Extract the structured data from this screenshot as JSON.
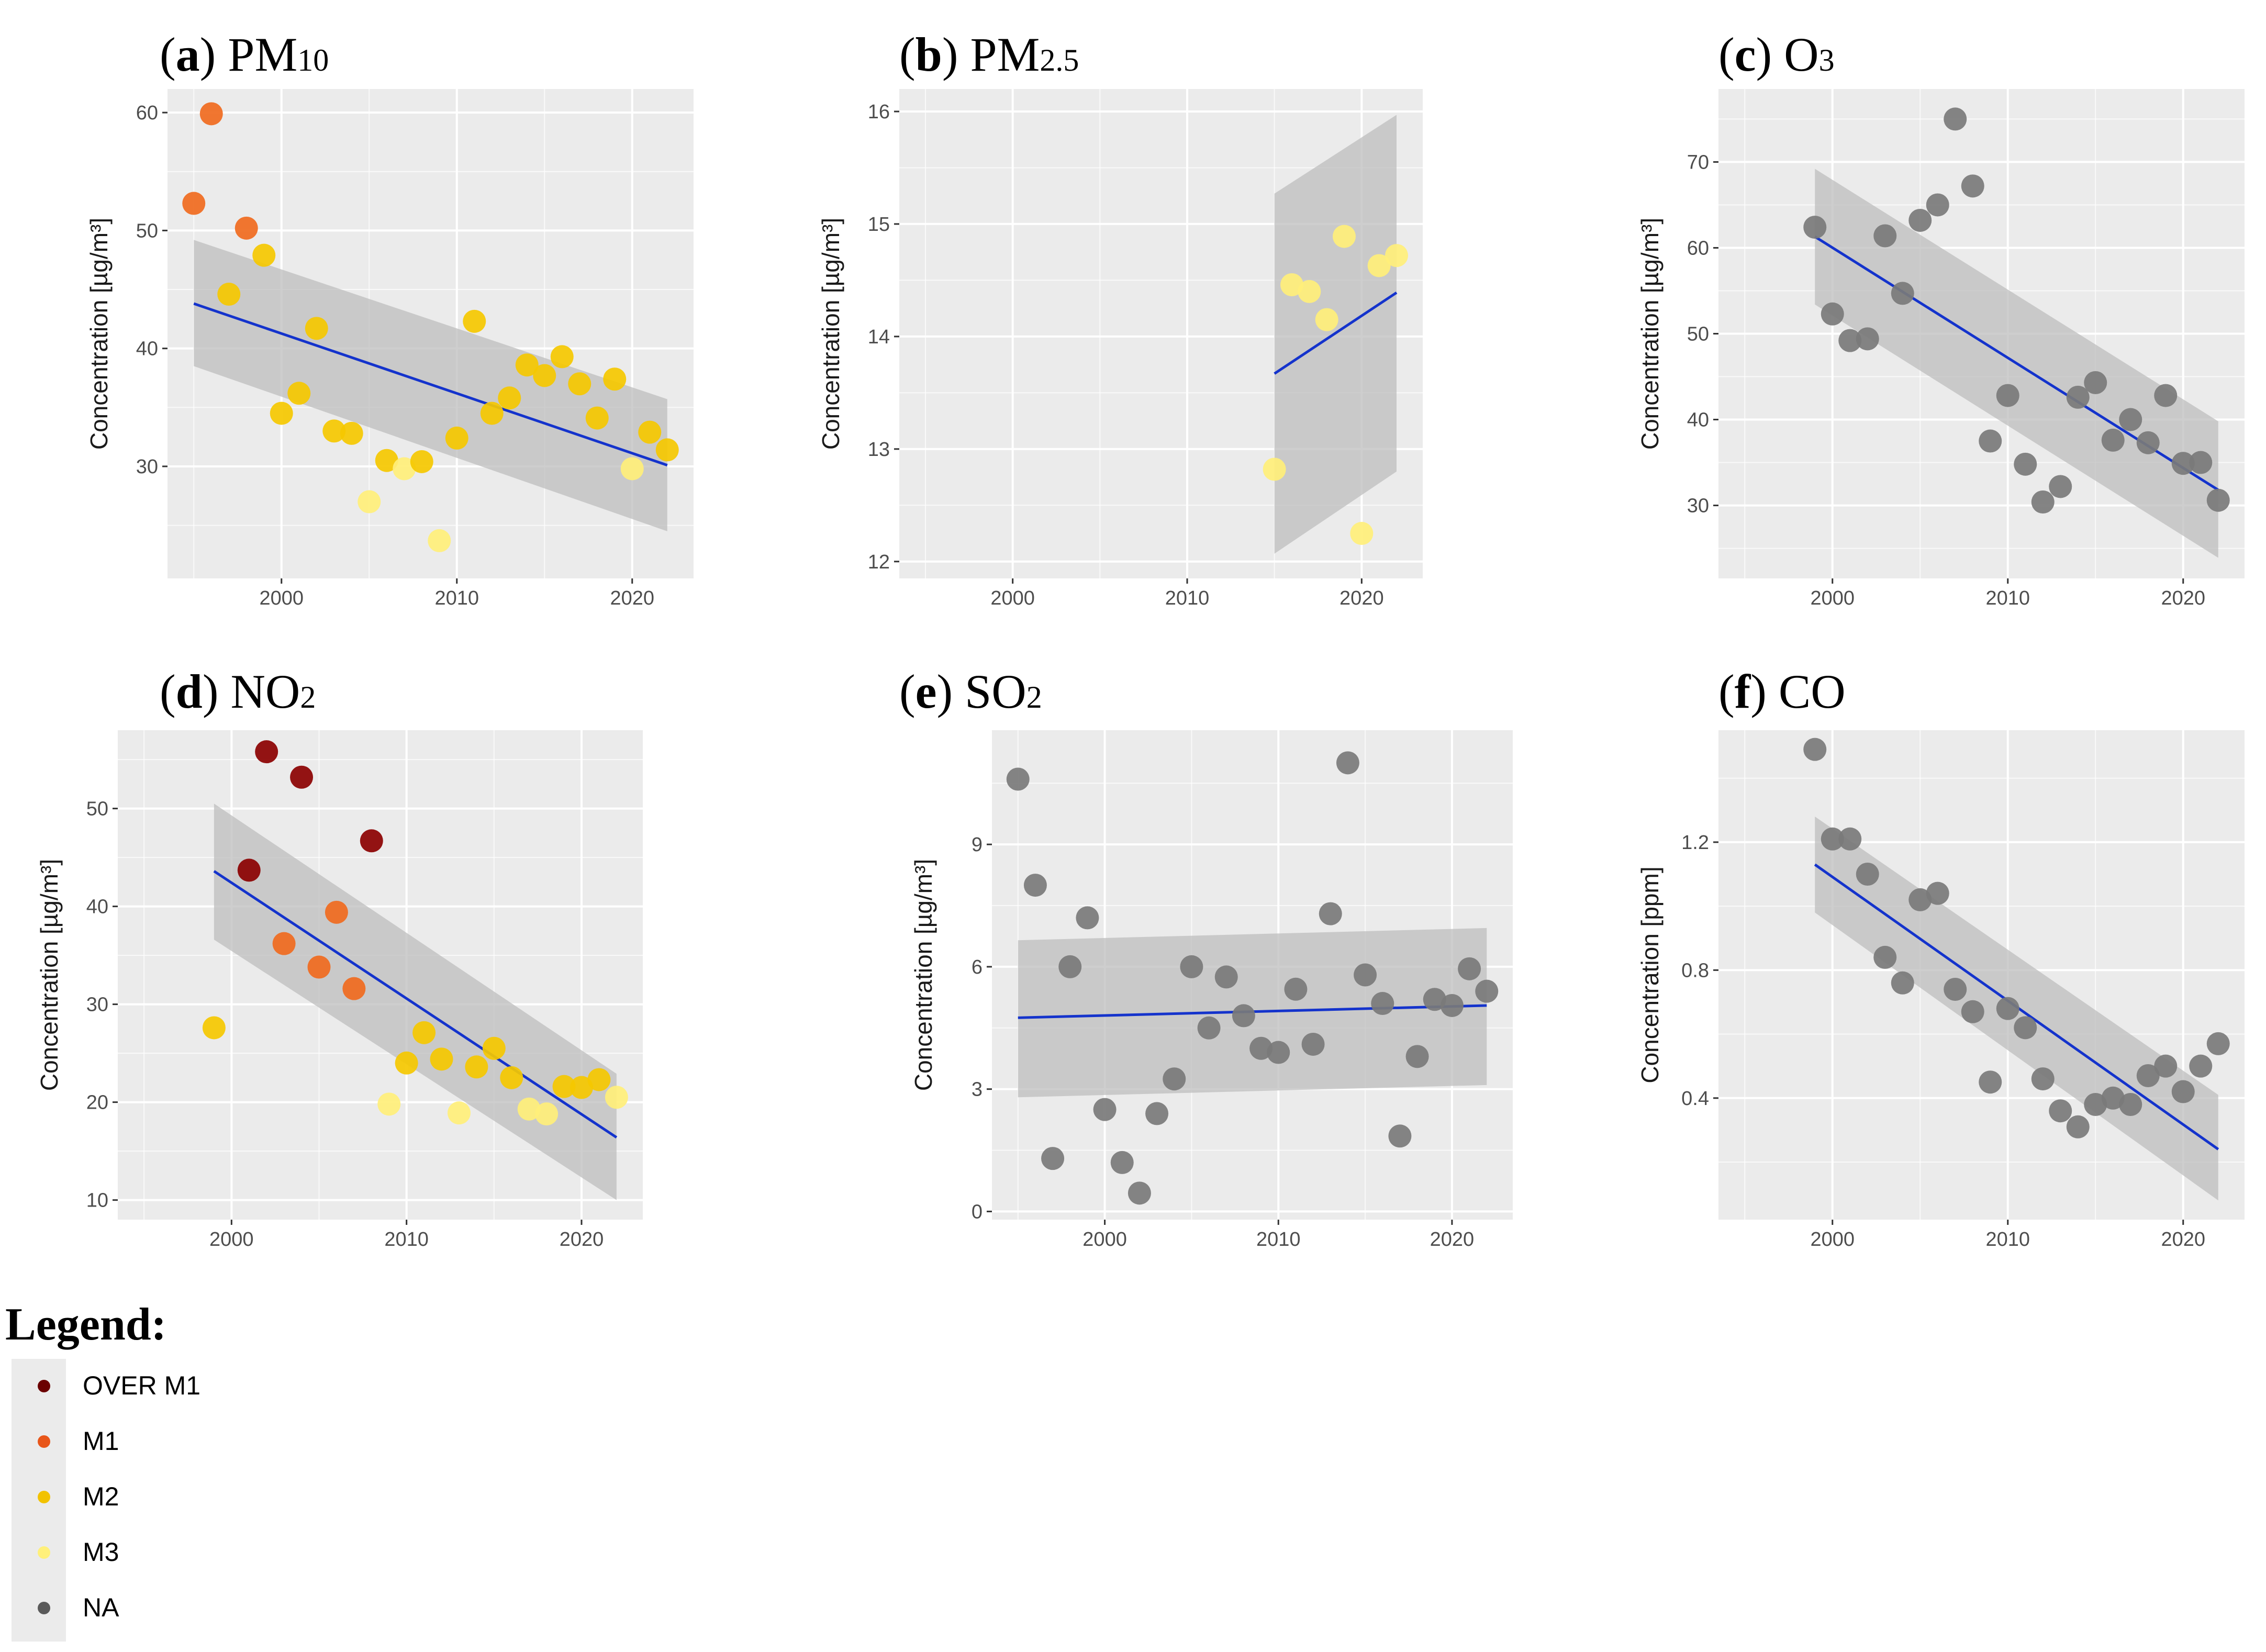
{
  "legend": {
    "title": "Legend:",
    "items": [
      {
        "label": "OVER M1",
        "color": "#6b0000"
      },
      {
        "label": "M1",
        "color": "#e8561a"
      },
      {
        "label": "M2",
        "color": "#f2c200"
      },
      {
        "label": "M3",
        "color": "#fff07a"
      },
      {
        "label": "NA",
        "color": "#5a5a5a"
      }
    ]
  },
  "colors": {
    "panel_background": "#ebebeb",
    "gridline": "#ffffff",
    "trend_line": "#1433cc",
    "confidence_band": "#bdbdbd",
    "OVER M1": "#8b0000",
    "M1": "#f06a1e",
    "M2": "#f5c800",
    "M3": "#ffef7a",
    "NA": "#7a7a7a"
  },
  "chart_data": [
    {
      "type": "scatter",
      "letter": "a",
      "pollutant": "PM",
      "subscript": "10",
      "xlabel": "",
      "ylabel": "Concentration [µg/m³]",
      "xlim": [
        1993.5,
        2023.5
      ],
      "ylim": [
        20.5,
        62
      ],
      "xticks": [
        2000,
        2010,
        2020
      ],
      "yticks": [
        30,
        40,
        50,
        60
      ],
      "trend": {
        "x": [
          1995,
          2022
        ],
        "y": [
          43.8,
          30.1
        ],
        "upper": [
          49.2,
          35.7
        ],
        "lower": [
          38.5,
          24.5
        ]
      },
      "points": [
        {
          "x": 1995,
          "y": 52.3,
          "category": "M1"
        },
        {
          "x": 1996,
          "y": 59.9,
          "category": "M1"
        },
        {
          "x": 1997,
          "y": 44.6,
          "category": "M2"
        },
        {
          "x": 1998,
          "y": 50.2,
          "category": "M1"
        },
        {
          "x": 1999,
          "y": 47.9,
          "category": "M2"
        },
        {
          "x": 2000,
          "y": 34.5,
          "category": "M2"
        },
        {
          "x": 2001,
          "y": 36.2,
          "category": "M2"
        },
        {
          "x": 2002,
          "y": 41.7,
          "category": "M2"
        },
        {
          "x": 2003,
          "y": 33.0,
          "category": "M2"
        },
        {
          "x": 2004,
          "y": 32.8,
          "category": "M2"
        },
        {
          "x": 2005,
          "y": 27.0,
          "category": "M3"
        },
        {
          "x": 2006,
          "y": 30.5,
          "category": "M2"
        },
        {
          "x": 2007,
          "y": 29.8,
          "category": "M3"
        },
        {
          "x": 2008,
          "y": 30.4,
          "category": "M2"
        },
        {
          "x": 2009,
          "y": 23.7,
          "category": "M3"
        },
        {
          "x": 2010,
          "y": 32.4,
          "category": "M2"
        },
        {
          "x": 2011,
          "y": 42.3,
          "category": "M2"
        },
        {
          "x": 2012,
          "y": 34.5,
          "category": "M2"
        },
        {
          "x": 2013,
          "y": 35.8,
          "category": "M2"
        },
        {
          "x": 2014,
          "y": 38.6,
          "category": "M2"
        },
        {
          "x": 2015,
          "y": 37.7,
          "category": "M2"
        },
        {
          "x": 2016,
          "y": 39.3,
          "category": "M2"
        },
        {
          "x": 2017,
          "y": 37.0,
          "category": "M2"
        },
        {
          "x": 2018,
          "y": 34.1,
          "category": "M2"
        },
        {
          "x": 2019,
          "y": 37.4,
          "category": "M2"
        },
        {
          "x": 2020,
          "y": 29.8,
          "category": "M3"
        },
        {
          "x": 2021,
          "y": 32.9,
          "category": "M2"
        },
        {
          "x": 2022,
          "y": 31.4,
          "category": "M2"
        }
      ]
    },
    {
      "type": "scatter",
      "letter": "b",
      "pollutant": "PM",
      "subscript": "2.5",
      "xlabel": "",
      "ylabel": "Concentration [µg/m³]",
      "xlim": [
        1993.5,
        2023.5
      ],
      "ylim": [
        11.85,
        16.2
      ],
      "xticks": [
        2000,
        2010,
        2020
      ],
      "yticks": [
        12,
        13,
        14,
        15,
        16
      ],
      "trend": {
        "x": [
          2015,
          2022
        ],
        "y": [
          13.67,
          14.39
        ],
        "upper": [
          15.27,
          15.97
        ],
        "lower": [
          12.07,
          12.8
        ]
      },
      "points": [
        {
          "x": 2015,
          "y": 12.82,
          "category": "M3"
        },
        {
          "x": 2016,
          "y": 14.46,
          "category": "M3"
        },
        {
          "x": 2017,
          "y": 14.4,
          "category": "M3"
        },
        {
          "x": 2018,
          "y": 14.15,
          "category": "M3"
        },
        {
          "x": 2019,
          "y": 14.89,
          "category": "M3"
        },
        {
          "x": 2020,
          "y": 12.25,
          "category": "M3"
        },
        {
          "x": 2021,
          "y": 14.63,
          "category": "M3"
        },
        {
          "x": 2022,
          "y": 14.72,
          "category": "M3"
        }
      ]
    },
    {
      "type": "scatter",
      "letter": "c",
      "pollutant": "O",
      "subscript": "3",
      "xlabel": "",
      "ylabel": "Concentration [µg/m³]",
      "xlim": [
        1993.5,
        2023.5
      ],
      "ylim": [
        21.5,
        78.5
      ],
      "xticks": [
        2000,
        2010,
        2020
      ],
      "yticks": [
        30,
        40,
        50,
        60,
        70
      ],
      "trend": {
        "x": [
          1999,
          2022
        ],
        "y": [
          61.3,
          31.8
        ],
        "upper": [
          69.2,
          39.8
        ],
        "lower": [
          53.4,
          23.9
        ]
      },
      "points": [
        {
          "x": 1999,
          "y": 62.4,
          "category": "NA"
        },
        {
          "x": 2000,
          "y": 52.3,
          "category": "NA"
        },
        {
          "x": 2001,
          "y": 49.2,
          "category": "NA"
        },
        {
          "x": 2002,
          "y": 49.4,
          "category": "NA"
        },
        {
          "x": 2003,
          "y": 61.4,
          "category": "NA"
        },
        {
          "x": 2004,
          "y": 54.7,
          "category": "NA"
        },
        {
          "x": 2005,
          "y": 63.2,
          "category": "NA"
        },
        {
          "x": 2006,
          "y": 65.0,
          "category": "NA"
        },
        {
          "x": 2007,
          "y": 75.0,
          "category": "NA"
        },
        {
          "x": 2008,
          "y": 67.2,
          "category": "NA"
        },
        {
          "x": 2009,
          "y": 37.5,
          "category": "NA"
        },
        {
          "x": 2010,
          "y": 42.8,
          "category": "NA"
        },
        {
          "x": 2011,
          "y": 34.8,
          "category": "NA"
        },
        {
          "x": 2012,
          "y": 30.4,
          "category": "NA"
        },
        {
          "x": 2013,
          "y": 32.2,
          "category": "NA"
        },
        {
          "x": 2014,
          "y": 42.6,
          "category": "NA"
        },
        {
          "x": 2015,
          "y": 44.3,
          "category": "NA"
        },
        {
          "x": 2016,
          "y": 37.6,
          "category": "NA"
        },
        {
          "x": 2017,
          "y": 40.0,
          "category": "NA"
        },
        {
          "x": 2018,
          "y": 37.3,
          "category": "NA"
        },
        {
          "x": 2019,
          "y": 42.8,
          "category": "NA"
        },
        {
          "x": 2020,
          "y": 34.9,
          "category": "NA"
        },
        {
          "x": 2021,
          "y": 35.0,
          "category": "NA"
        },
        {
          "x": 2022,
          "y": 30.6,
          "category": "NA"
        }
      ]
    },
    {
      "type": "scatter",
      "letter": "d",
      "pollutant": "NO",
      "subscript": "2",
      "xlabel": "",
      "ylabel": "Concentration [µg/m³]",
      "xlim": [
        1993.5,
        2023.5
      ],
      "ylim": [
        8,
        58
      ],
      "xticks": [
        2000,
        2010,
        2020
      ],
      "yticks": [
        10,
        20,
        30,
        40,
        50
      ],
      "trend": {
        "x": [
          1999,
          2022
        ],
        "y": [
          43.6,
          16.4
        ],
        "upper": [
          50.5,
          22.9
        ],
        "lower": [
          36.6,
          10.0
        ]
      },
      "points": [
        {
          "x": 1999,
          "y": 27.6,
          "category": "M2"
        },
        {
          "x": 2001,
          "y": 43.7,
          "category": "OVER M1"
        },
        {
          "x": 2002,
          "y": 55.8,
          "category": "OVER M1"
        },
        {
          "x": 2003,
          "y": 36.2,
          "category": "M1"
        },
        {
          "x": 2004,
          "y": 53.2,
          "category": "OVER M1"
        },
        {
          "x": 2005,
          "y": 33.8,
          "category": "M1"
        },
        {
          "x": 2006,
          "y": 39.4,
          "category": "M1"
        },
        {
          "x": 2007,
          "y": 31.6,
          "category": "M1"
        },
        {
          "x": 2008,
          "y": 46.7,
          "category": "OVER M1"
        },
        {
          "x": 2009,
          "y": 19.8,
          "category": "M3"
        },
        {
          "x": 2010,
          "y": 24.0,
          "category": "M2"
        },
        {
          "x": 2011,
          "y": 27.1,
          "category": "M2"
        },
        {
          "x": 2012,
          "y": 24.4,
          "category": "M2"
        },
        {
          "x": 2013,
          "y": 18.9,
          "category": "M3"
        },
        {
          "x": 2014,
          "y": 23.6,
          "category": "M2"
        },
        {
          "x": 2015,
          "y": 25.5,
          "category": "M2"
        },
        {
          "x": 2016,
          "y": 22.5,
          "category": "M2"
        },
        {
          "x": 2017,
          "y": 19.3,
          "category": "M3"
        },
        {
          "x": 2018,
          "y": 18.8,
          "category": "M3"
        },
        {
          "x": 2019,
          "y": 21.6,
          "category": "M2"
        },
        {
          "x": 2020,
          "y": 21.5,
          "category": "M2"
        },
        {
          "x": 2021,
          "y": 22.3,
          "category": "M2"
        },
        {
          "x": 2022,
          "y": 20.5,
          "category": "M3"
        }
      ]
    },
    {
      "type": "scatter",
      "letter": "e",
      "pollutant": "SO",
      "subscript": "2",
      "xlabel": "",
      "ylabel": "Concentration [µg/m³]",
      "xlim": [
        1993.5,
        2023.5
      ],
      "ylim": [
        -0.2,
        11.8
      ],
      "xticks": [
        2000,
        2010,
        2020
      ],
      "yticks": [
        0,
        3,
        6,
        9
      ],
      "trend": {
        "x": [
          1995,
          2022
        ],
        "y": [
          4.75,
          5.05
        ],
        "upper": [
          6.65,
          6.95
        ],
        "lower": [
          2.8,
          3.1
        ]
      },
      "points": [
        {
          "x": 1995,
          "y": 10.6,
          "category": "NA"
        },
        {
          "x": 1996,
          "y": 8.0,
          "category": "NA"
        },
        {
          "x": 1997,
          "y": 1.3,
          "category": "NA"
        },
        {
          "x": 1998,
          "y": 6.0,
          "category": "NA"
        },
        {
          "x": 1999,
          "y": 7.2,
          "category": "NA"
        },
        {
          "x": 2000,
          "y": 2.5,
          "category": "NA"
        },
        {
          "x": 2001,
          "y": 1.2,
          "category": "NA"
        },
        {
          "x": 2002,
          "y": 0.45,
          "category": "NA"
        },
        {
          "x": 2003,
          "y": 2.4,
          "category": "NA"
        },
        {
          "x": 2004,
          "y": 3.25,
          "category": "NA"
        },
        {
          "x": 2005,
          "y": 6.0,
          "category": "NA"
        },
        {
          "x": 2006,
          "y": 4.5,
          "category": "NA"
        },
        {
          "x": 2007,
          "y": 5.75,
          "category": "NA"
        },
        {
          "x": 2008,
          "y": 4.8,
          "category": "NA"
        },
        {
          "x": 2009,
          "y": 4.0,
          "category": "NA"
        },
        {
          "x": 2010,
          "y": 3.9,
          "category": "NA"
        },
        {
          "x": 2011,
          "y": 5.45,
          "category": "NA"
        },
        {
          "x": 2012,
          "y": 4.1,
          "category": "NA"
        },
        {
          "x": 2013,
          "y": 7.3,
          "category": "NA"
        },
        {
          "x": 2014,
          "y": 11.0,
          "category": "NA"
        },
        {
          "x": 2015,
          "y": 5.8,
          "category": "NA"
        },
        {
          "x": 2016,
          "y": 5.1,
          "category": "NA"
        },
        {
          "x": 2017,
          "y": 1.85,
          "category": "NA"
        },
        {
          "x": 2018,
          "y": 3.8,
          "category": "NA"
        },
        {
          "x": 2019,
          "y": 5.2,
          "category": "NA"
        },
        {
          "x": 2020,
          "y": 5.05,
          "category": "NA"
        },
        {
          "x": 2021,
          "y": 5.95,
          "category": "NA"
        },
        {
          "x": 2022,
          "y": 5.4,
          "category": "NA"
        }
      ]
    },
    {
      "type": "scatter",
      "letter": "f",
      "pollutant": "CO",
      "subscript": "",
      "xlabel": "",
      "ylabel": "Concentration [ppm]",
      "xlim": [
        1993.5,
        2023.5
      ],
      "ylim": [
        0.02,
        1.55
      ],
      "xticks": [
        2000,
        2010,
        2020
      ],
      "yticks": [
        0.4,
        0.8,
        1.2
      ],
      "yticklabels": [
        "0.4",
        "0.8",
        "1.2"
      ],
      "trend": {
        "x": [
          1999,
          2022
        ],
        "y": [
          1.13,
          0.24
        ],
        "upper": [
          1.28,
          0.41
        ],
        "lower": [
          0.98,
          0.08
        ]
      },
      "points": [
        {
          "x": 1999,
          "y": 1.49,
          "category": "NA"
        },
        {
          "x": 2000,
          "y": 1.21,
          "category": "NA"
        },
        {
          "x": 2001,
          "y": 1.21,
          "category": "NA"
        },
        {
          "x": 2002,
          "y": 1.1,
          "category": "NA"
        },
        {
          "x": 2003,
          "y": 0.84,
          "category": "NA"
        },
        {
          "x": 2004,
          "y": 0.76,
          "category": "NA"
        },
        {
          "x": 2005,
          "y": 1.02,
          "category": "NA"
        },
        {
          "x": 2006,
          "y": 1.04,
          "category": "NA"
        },
        {
          "x": 2007,
          "y": 0.74,
          "category": "NA"
        },
        {
          "x": 2008,
          "y": 0.67,
          "category": "NA"
        },
        {
          "x": 2009,
          "y": 0.45,
          "category": "NA"
        },
        {
          "x": 2010,
          "y": 0.68,
          "category": "NA"
        },
        {
          "x": 2011,
          "y": 0.62,
          "category": "NA"
        },
        {
          "x": 2012,
          "y": 0.46,
          "category": "NA"
        },
        {
          "x": 2013,
          "y": 0.36,
          "category": "NA"
        },
        {
          "x": 2014,
          "y": 0.31,
          "category": "NA"
        },
        {
          "x": 2015,
          "y": 0.38,
          "category": "NA"
        },
        {
          "x": 2016,
          "y": 0.4,
          "category": "NA"
        },
        {
          "x": 2017,
          "y": 0.38,
          "category": "NA"
        },
        {
          "x": 2018,
          "y": 0.47,
          "category": "NA"
        },
        {
          "x": 2019,
          "y": 0.5,
          "category": "NA"
        },
        {
          "x": 2020,
          "y": 0.42,
          "category": "NA"
        },
        {
          "x": 2021,
          "y": 0.5,
          "category": "NA"
        },
        {
          "x": 2022,
          "y": 0.57,
          "category": "NA"
        }
      ]
    }
  ]
}
